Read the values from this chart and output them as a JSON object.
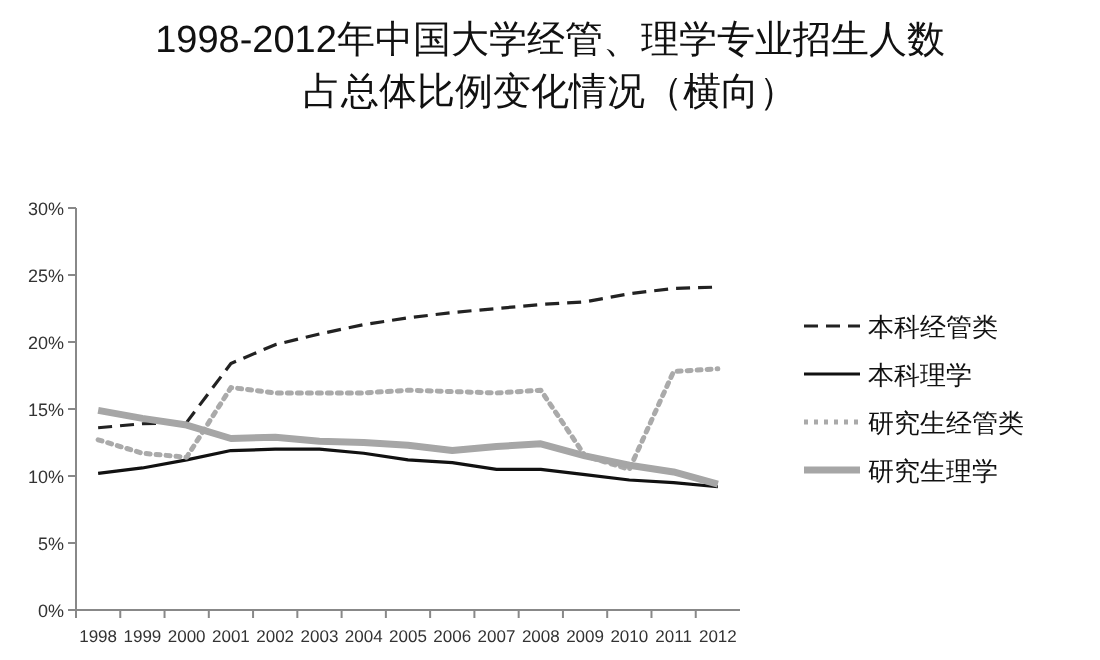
{
  "chart_data": {
    "type": "line",
    "title": "1998-2012年中国大学经管、理学专业招生人数",
    "subtitle": "占总体比例变化情况（横向）",
    "categories": [
      "1998",
      "1999",
      "2000",
      "2001",
      "2002",
      "2003",
      "2004",
      "2005",
      "2006",
      "2007",
      "2008",
      "2009",
      "2010",
      "2011",
      "2012"
    ],
    "series": [
      {
        "name": "本科经管类",
        "color": "#222222",
        "line_style": "dashed",
        "values": [
          13.6,
          13.9,
          14.0,
          18.4,
          19.8,
          20.6,
          21.3,
          21.8,
          22.2,
          22.5,
          22.8,
          23.0,
          23.6,
          24.0,
          24.1
        ]
      },
      {
        "name": "本科理学",
        "color": "#111111",
        "line_style": "solid",
        "values": [
          10.2,
          10.6,
          11.2,
          11.9,
          12.0,
          12.0,
          11.7,
          11.2,
          11.0,
          10.5,
          10.5,
          10.1,
          9.7,
          9.5,
          9.2
        ]
      },
      {
        "name": "研究生经管类",
        "color": "#aaaaaa",
        "line_style": "dotted",
        "values": [
          12.7,
          11.7,
          11.4,
          16.6,
          16.2,
          16.2,
          16.2,
          16.4,
          16.3,
          16.2,
          16.4,
          11.5,
          10.5,
          17.8,
          18.0
        ]
      },
      {
        "name": "研究生理学",
        "color": "#a6a6a6",
        "line_style": "solid",
        "values": [
          14.9,
          14.3,
          13.8,
          12.8,
          12.9,
          12.6,
          12.5,
          12.3,
          11.9,
          12.2,
          12.4,
          11.5,
          10.8,
          10.3,
          9.4
        ]
      }
    ],
    "ylim": [
      0,
      30
    ],
    "yticks": [
      {
        "value": 0,
        "label": "0%"
      },
      {
        "value": 5,
        "label": "5%"
      },
      {
        "value": 10,
        "label": "10%"
      },
      {
        "value": 15,
        "label": "15%"
      },
      {
        "value": 20,
        "label": "20%"
      },
      {
        "value": 25,
        "label": "25%"
      },
      {
        "value": 30,
        "label": "30%"
      }
    ],
    "grid": false,
    "legend": "right"
  }
}
